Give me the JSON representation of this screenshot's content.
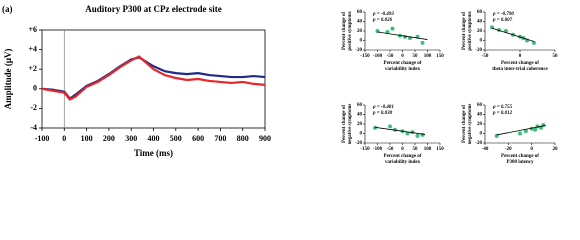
{
  "panel_label": "(a)",
  "chart_data": [
    {
      "type": "line",
      "title": "Auditory P300 at CPz electrode site",
      "xlabel": "Time (ms)",
      "ylabel": "Amplitude (μV)",
      "x": [
        -100,
        -50,
        0,
        25,
        50,
        100,
        150,
        200,
        250,
        300,
        335,
        350,
        400,
        450,
        500,
        550,
        600,
        650,
        700,
        750,
        800,
        850,
        900
      ],
      "series": [
        {
          "color": "#1f2a8c",
          "values": [
            0,
            -0.1,
            -0.3,
            -1.0,
            -0.6,
            0.3,
            0.8,
            1.5,
            2.3,
            3.0,
            3.2,
            3.0,
            2.3,
            1.8,
            1.6,
            1.5,
            1.6,
            1.4,
            1.3,
            1.2,
            1.2,
            1.3,
            1.2
          ]
        },
        {
          "color": "#e8262a",
          "values": [
            0,
            -0.2,
            -0.4,
            -1.1,
            -0.8,
            0.2,
            0.7,
            1.4,
            2.2,
            2.9,
            3.3,
            3.0,
            2.0,
            1.4,
            1.1,
            0.9,
            1.0,
            0.8,
            0.7,
            0.6,
            0.7,
            0.5,
            0.4
          ]
        }
      ],
      "xlim": [
        -100,
        900
      ],
      "xticks": [
        -100,
        0,
        100,
        200,
        300,
        400,
        500,
        600,
        700,
        800,
        900
      ],
      "ylim": [
        -4,
        6
      ],
      "yticks": [
        -4,
        -2,
        0,
        {
          "value": 2,
          "label": "+2"
        },
        {
          "value": 4,
          "label": "+4"
        },
        {
          "value": 6,
          "label": "+6"
        }
      ]
    },
    {
      "type": "scatter",
      "color": "#3cbf7a",
      "xlabel": [
        "Percent change of",
        "variability index"
      ],
      "ylabel": [
        "Percent change of",
        "positive symptoms"
      ],
      "annotations": [
        "ρ = -0.493",
        "p = 0.026"
      ],
      "x": [
        -100,
        -60,
        -40,
        -10,
        10,
        30,
        60,
        80
      ],
      "y": [
        20,
        18,
        25,
        10,
        8,
        5,
        8,
        -5
      ],
      "fit": {
        "x": [
          -100,
          100
        ],
        "y": [
          18,
          2
        ]
      },
      "xlim": [
        -150,
        150
      ],
      "xticks": [
        -150,
        -100,
        -50,
        0,
        50,
        100,
        150
      ],
      "ylim": [
        -20,
        60
      ],
      "yticks": [
        -20,
        0,
        20,
        40,
        60
      ]
    },
    {
      "type": "scatter",
      "color": "#3cbf7a",
      "xlabel": [
        "Percent change of",
        "theta inter-trial coherence"
      ],
      "ylabel": [
        "Percent change of",
        "positive symptoms"
      ],
      "annotations": [
        "ρ = -0.790",
        "p = 0.007"
      ],
      "x": [
        -40,
        -30,
        -20,
        -10,
        0,
        5,
        10,
        20
      ],
      "y": [
        28,
        22,
        20,
        12,
        8,
        5,
        0,
        -5
      ],
      "fit": {
        "x": [
          -40,
          20
        ],
        "y": [
          26,
          -2
        ]
      },
      "xlim": [
        -50,
        50
      ],
      "xticks": [
        -50,
        0,
        50
      ],
      "ylim": [
        -20,
        60
      ],
      "yticks": [
        -20,
        0,
        20,
        40,
        60
      ]
    },
    {
      "type": "scatter",
      "color": "#3cbf7a",
      "xlabel": [
        "Percent change of",
        "variability index"
      ],
      "ylabel": [
        "Percent change of",
        "negative symptoms"
      ],
      "annotations": [
        "ρ = -0.481",
        "p = 0.030"
      ],
      "x": [
        -110,
        -50,
        -30,
        0,
        20,
        40,
        60,
        80
      ],
      "y": [
        12,
        15,
        8,
        5,
        0,
        3,
        -5,
        -3
      ],
      "fit": {
        "x": [
          -110,
          90
        ],
        "y": [
          13,
          -2
        ]
      },
      "xlim": [
        -150,
        150
      ],
      "xticks": [
        -150,
        -100,
        -50,
        0,
        50,
        100,
        150
      ],
      "ylim": [
        -20,
        60
      ],
      "yticks": [
        -20,
        0,
        20,
        40,
        60
      ]
    },
    {
      "type": "scatter",
      "color": "#3cbf7a",
      "xlabel": [
        "Percent change of",
        "P300 latency"
      ],
      "ylabel": [
        "Percent change of",
        "negative symptoms"
      ],
      "annotations": [
        "ρ = 0.755",
        "p = 0.012"
      ],
      "x": [
        -30,
        -10,
        -5,
        0,
        3,
        5,
        8,
        10
      ],
      "y": [
        -5,
        0,
        5,
        10,
        8,
        15,
        12,
        18
      ],
      "fit": {
        "x": [
          -30,
          12
        ],
        "y": [
          -3,
          17
        ]
      },
      "xlim": [
        -40,
        20
      ],
      "xticks": [
        -40,
        -20,
        0,
        20
      ],
      "ylim": [
        -20,
        60
      ],
      "yticks": [
        -20,
        0,
        20,
        40,
        60
      ]
    }
  ]
}
